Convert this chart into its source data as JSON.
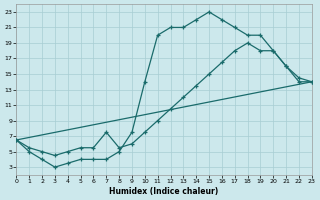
{
  "xlabel": "Humidex (Indice chaleur)",
  "bg_color": "#cce8ec",
  "grid_color": "#a8cdd3",
  "line_color": "#1a6b6b",
  "xlim": [
    0,
    23
  ],
  "ylim": [
    2,
    24
  ],
  "xticks": [
    0,
    1,
    2,
    3,
    4,
    5,
    6,
    7,
    8,
    9,
    10,
    11,
    12,
    13,
    14,
    15,
    16,
    17,
    18,
    19,
    20,
    21,
    22,
    23
  ],
  "yticks": [
    3,
    5,
    7,
    9,
    11,
    13,
    15,
    17,
    19,
    21,
    23
  ],
  "line1_x": [
    0,
    1,
    2,
    3,
    4,
    5,
    6,
    7,
    8,
    9,
    10,
    11,
    12,
    13,
    14,
    15,
    16,
    17,
    18,
    19,
    20,
    21,
    22,
    23
  ],
  "line1_y": [
    6.5,
    5,
    4,
    3,
    3.5,
    4,
    4,
    4,
    5,
    7.5,
    14,
    20,
    21,
    21,
    22,
    23,
    22,
    21,
    20,
    20,
    18,
    16,
    14,
    14
  ],
  "line2_x": [
    0,
    1,
    2,
    3,
    4,
    5,
    6,
    7,
    8,
    9,
    10,
    11,
    12,
    13,
    14,
    15,
    16,
    17,
    18,
    19,
    20,
    21,
    22,
    23
  ],
  "line2_y": [
    6.5,
    5.5,
    5,
    4.5,
    5,
    5.5,
    5.5,
    7.5,
    5.5,
    6,
    7.5,
    9,
    10.5,
    12,
    13.5,
    15,
    16.5,
    18,
    19,
    18,
    18,
    16,
    14.5,
    14
  ],
  "line3_x": [
    0,
    23
  ],
  "line3_y": [
    6.5,
    14
  ]
}
